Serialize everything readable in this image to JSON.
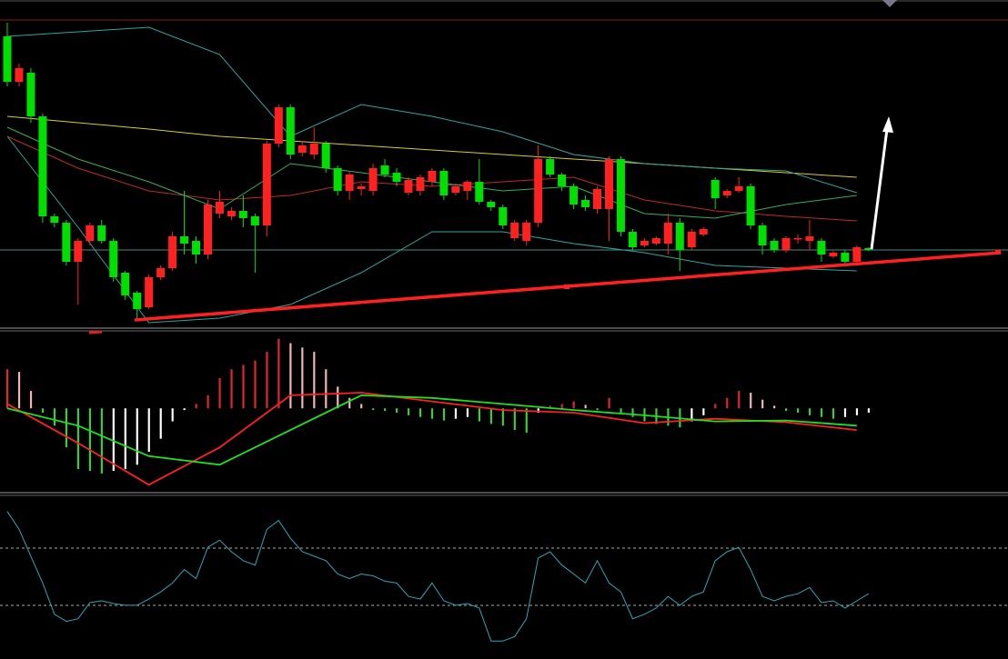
{
  "chart_data": [
    {
      "type": "candlestick",
      "ylim": [
        0,
        338
      ],
      "open": [
        320,
        270,
        280,
        232,
        122,
        115,
        72,
        95,
        112,
        95,
        60,
        38,
        22,
        55,
        65,
        100,
        95,
        80,
        125,
        122,
        128,
        122,
        112,
        202,
        242,
        192,
        190,
        202,
        175,
        150,
        152,
        150,
        178,
        170,
        148,
        150,
        160,
        172,
        148,
        150,
        160,
        138,
        132,
        98,
        95,
        115,
        185,
        168,
        155,
        140,
        130,
        130,
        185,
        105,
        90,
        92,
        92,
        115,
        88,
        102,
        162,
        145,
        150,
        155,
        112,
        95,
        85,
        97,
        95,
        95,
        78,
        82,
        72,
        87
      ],
      "high": [
        335,
        290,
        285,
        235,
        125,
        118,
        98,
        115,
        118,
        98,
        62,
        40,
        58,
        68,
        105,
        150,
        100,
        140,
        150,
        132,
        145,
        125,
        205,
        245,
        245,
        205,
        220,
        205,
        178,
        172,
        158,
        180,
        185,
        175,
        165,
        168,
        175,
        175,
        158,
        162,
        185,
        140,
        135,
        118,
        118,
        200,
        188,
        170,
        158,
        145,
        155,
        188,
        188,
        108,
        98,
        100,
        125,
        120,
        108,
        110,
        165,
        152,
        165,
        158,
        115,
        98,
        100,
        102,
        118,
        98,
        84,
        85,
        90,
        88
      ],
      "low": [
        265,
        265,
        225,
        115,
        110,
        68,
        25,
        90,
        92,
        50,
        30,
        10,
        20,
        52,
        62,
        80,
        70,
        75,
        120,
        118,
        110,
        60,
        100,
        198,
        185,
        188,
        185,
        170,
        145,
        140,
        145,
        145,
        165,
        155,
        145,
        145,
        155,
        140,
        145,
        140,
        135,
        128,
        108,
        95,
        90,
        110,
        165,
        150,
        130,
        128,
        125,
        95,
        100,
        85,
        88,
        90,
        80,
        62,
        85,
        100,
        130,
        142,
        148,
        108,
        80,
        82,
        82,
        92,
        85,
        72,
        76,
        70,
        70,
        84
      ],
      "close": [
        270,
        285,
        232,
        122,
        115,
        72,
        95,
        112,
        95,
        55,
        35,
        20,
        55,
        65,
        100,
        92,
        80,
        135,
        138,
        128,
        120,
        112,
        202,
        242,
        190,
        200,
        202,
        175,
        150,
        168,
        155,
        175,
        168,
        160,
        162,
        165,
        172,
        145,
        155,
        160,
        138,
        132,
        112,
        115,
        115,
        185,
        168,
        155,
        135,
        132,
        152,
        185,
        105,
        88,
        95,
        98,
        115,
        85,
        105,
        108,
        142,
        150,
        155,
        112,
        90,
        85,
        98,
        98,
        100,
        80,
        82,
        72,
        88,
        85
      ],
      "up_color": "#ff2020",
      "down_color": "#00e000",
      "series": [
        {
          "color": "#d8d020",
          "x": [
            0,
            6,
            12,
            18,
            24,
            30,
            36,
            42,
            48,
            54,
            60,
            66,
            72
          ],
          "values": [
            232,
            225,
            218,
            210,
            205,
            200,
            195,
            190,
            185,
            180,
            175,
            170,
            165
          ]
        },
        {
          "color": "#2aa8a0",
          "x": [
            0,
            6,
            12,
            18,
            24,
            30,
            36,
            42,
            48,
            54,
            60,
            66,
            72
          ],
          "values": [
            320,
            325,
            330,
            300,
            210,
            245,
            232,
            215,
            190,
            180,
            175,
            172,
            148
          ]
        },
        {
          "color": "#2aa8a0",
          "x": [
            0,
            6,
            12,
            18,
            24,
            30,
            36,
            42,
            48,
            54,
            60,
            66,
            72
          ],
          "values": [
            210,
            110,
            5,
            10,
            25,
            60,
            105,
            105,
            92,
            82,
            68,
            65,
            62
          ]
        },
        {
          "color": "#c02828",
          "x": [
            0,
            6,
            12,
            18,
            24,
            30,
            36,
            42,
            48,
            54,
            60,
            66,
            72
          ],
          "values": [
            210,
            175,
            150,
            140,
            145,
            160,
            155,
            160,
            165,
            140,
            128,
            122,
            117
          ]
        },
        {
          "color": "#30b060",
          "x": [
            0,
            6,
            12,
            18,
            24,
            30,
            36,
            42,
            48,
            54,
            60,
            66,
            72
          ],
          "values": [
            220,
            185,
            160,
            130,
            180,
            170,
            160,
            150,
            155,
            125,
            120,
            135,
            145
          ]
        }
      ]
    },
    {
      "type": "macd",
      "ylim": [
        -95,
        85
      ],
      "values": [
        45,
        42,
        20,
        -5,
        -20,
        -45,
        -70,
        -72,
        -75,
        -72,
        -70,
        -65,
        -50,
        -35,
        -15,
        -2,
        5,
        15,
        35,
        45,
        50,
        55,
        65,
        80,
        75,
        70,
        65,
        45,
        25,
        12,
        5,
        -2,
        -3,
        -5,
        -8,
        -10,
        -12,
        -14,
        -12,
        -10,
        -15,
        -18,
        -20,
        -25,
        -28,
        -5,
        3,
        5,
        8,
        4,
        -2,
        12,
        -5,
        -10,
        -15,
        -18,
        -20,
        -22,
        -15,
        -8,
        5,
        12,
        20,
        18,
        10,
        3,
        -3,
        -5,
        -8,
        -10,
        -12,
        -10,
        -8,
        -5
      ],
      "colors": {
        "up_grow": "#e02828",
        "up_shrink": "#f0b4b4",
        "down_grow": "#3ccc3c",
        "down_shrink": "#ffffff"
      },
      "series": [
        {
          "color": "#ff2020",
          "x": [
            0,
            6,
            12,
            18,
            24,
            30,
            36,
            42,
            48,
            54,
            60,
            66,
            72
          ],
          "values": [
            5,
            -40,
            -88,
            -45,
            15,
            18,
            8,
            -2,
            -5,
            -17,
            -12,
            -16,
            -25
          ]
        },
        {
          "color": "#20e020",
          "x": [
            0,
            6,
            12,
            18,
            24,
            30,
            36,
            42,
            48,
            54,
            60,
            66,
            72
          ],
          "values": [
            0,
            -20,
            -55,
            -65,
            -25,
            15,
            12,
            5,
            -2,
            -8,
            -15,
            -14,
            -20
          ]
        }
      ]
    },
    {
      "type": "line",
      "ylim": [
        0,
        175
      ],
      "color": "#2aa8b8",
      "hlines": [
        119,
        55
      ],
      "values": [
        160,
        140,
        110,
        80,
        45,
        37,
        40,
        58,
        60,
        57,
        55,
        55,
        62,
        70,
        80,
        95,
        85,
        120,
        128,
        115,
        105,
        100,
        140,
        150,
        130,
        115,
        110,
        105,
        90,
        85,
        90,
        88,
        82,
        80,
        65,
        62,
        80,
        60,
        55,
        57,
        52,
        15,
        15,
        20,
        40,
        108,
        115,
        100,
        90,
        80,
        105,
        80,
        70,
        40,
        45,
        52,
        65,
        55,
        65,
        70,
        105,
        115,
        120,
        95,
        65,
        60,
        65,
        68,
        75,
        58,
        60,
        52,
        60,
        68
      ]
    }
  ]
}
